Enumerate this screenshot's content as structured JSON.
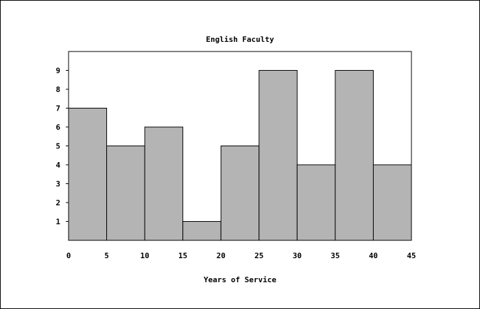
{
  "chart_data": {
    "type": "bar",
    "title": "English Faculty",
    "xlabel": "Years of Service",
    "ylabel": "",
    "bins": [
      [
        0,
        5
      ],
      [
        5,
        10
      ],
      [
        10,
        15
      ],
      [
        15,
        20
      ],
      [
        20,
        25
      ],
      [
        25,
        30
      ],
      [
        30,
        35
      ],
      [
        35,
        40
      ],
      [
        40,
        45
      ]
    ],
    "values": [
      7,
      5,
      6,
      1,
      5,
      9,
      4,
      9,
      4
    ],
    "xlim": [
      0,
      45
    ],
    "ylim": [
      0,
      10
    ],
    "xticks": [
      "0",
      "5",
      "10",
      "15",
      "20",
      "25",
      "30",
      "35",
      "40",
      "45"
    ],
    "yticks": [
      "1",
      "2",
      "3",
      "4",
      "5",
      "6",
      "7",
      "8",
      "9"
    ],
    "bar_color": "#b4b4b4",
    "edge_color": "#000000",
    "grid": false,
    "legend": "none"
  }
}
